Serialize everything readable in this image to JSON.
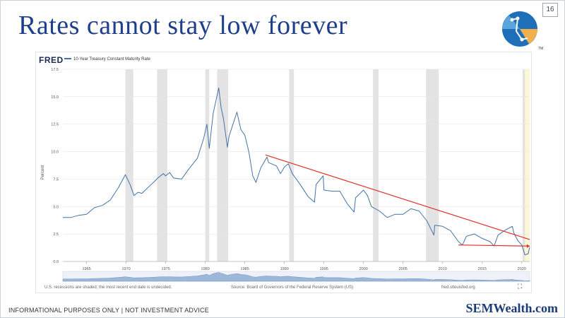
{
  "slide": {
    "title": "Rates cannot stay low forever",
    "page_number": "16",
    "disclaimer": "INFORMATIONAL PURPOSES ONLY | NOT INVESTMENT ADVICE",
    "brand": "SEMWealth.com",
    "logo_mark": "TM"
  },
  "chart_source": {
    "logo_text": "FRED",
    "recession_note": "U.S. recessions are shaded; the most recent end date is undecided.",
    "source_note": "Source: Board of Governors of the Federal Reserve System (US)",
    "site": "fred.stlouisfed.org"
  },
  "colors": {
    "title": "#1f3f8a",
    "series": "#4472a8",
    "trendline": "#e0302a",
    "recession": "#e3e3e3",
    "recent_highlight": "#fbf7d6"
  },
  "chart_data": {
    "type": "line",
    "title": "",
    "xlabel": "",
    "ylabel": "Percent",
    "xlim": [
      1962,
      2021
    ],
    "ylim": [
      0,
      17.5
    ],
    "grid": true,
    "x_ticks": [
      "1965",
      "1970",
      "1975",
      "1980",
      "1985",
      "1990",
      "1995",
      "2000",
      "2005",
      "2010",
      "2015",
      "2020"
    ],
    "y_ticks": [
      "0.0",
      "2.5",
      "5.0",
      "7.5",
      "10.0",
      "12.5",
      "15.0",
      "17.5"
    ],
    "legend": "top-left",
    "series": [
      {
        "name": "10-Year Treasury Constant Maturity Rate",
        "x": [
          1962,
          1963,
          1964,
          1965,
          1966,
          1967,
          1968,
          1969,
          1969.9,
          1970.5,
          1971,
          1971.5,
          1972,
          1973,
          1973.6,
          1974,
          1974.7,
          1975,
          1975.5,
          1976,
          1977,
          1978,
          1979,
          1979.8,
          1980.2,
          1980.5,
          1981,
          1981.7,
          1982,
          1982.3,
          1982.8,
          1983,
          1984,
          1984.5,
          1985,
          1985.5,
          1986,
          1986.4,
          1987,
          1987.8,
          1988,
          1989,
          1989.5,
          1990,
          1990.5,
          1991,
          1992,
          1993,
          1993.8,
          1994,
          1994.9,
          1995,
          1996,
          1997,
          1998,
          1998.8,
          1999,
          2000,
          2000.5,
          2001,
          2002,
          2003,
          2004,
          2005,
          2006,
          2007,
          2008,
          2008.9,
          2009,
          2010,
          2011,
          2012,
          2012.5,
          2013,
          2014,
          2015,
          2016,
          2016.5,
          2017,
          2018,
          2018.8,
          2019,
          2019.5,
          2020,
          2020.4,
          2020.8,
          2021
        ],
        "y": [
          4.0,
          4.0,
          4.2,
          4.3,
          4.9,
          5.1,
          5.6,
          6.7,
          7.9,
          7.0,
          6.0,
          6.3,
          6.2,
          6.9,
          7.3,
          7.6,
          8.0,
          7.8,
          8.1,
          7.6,
          7.5,
          8.5,
          9.4,
          11.2,
          12.5,
          10.3,
          13.5,
          15.8,
          14.0,
          13.0,
          10.4,
          11.4,
          13.6,
          12.0,
          11.5,
          10.0,
          7.8,
          7.2,
          8.5,
          9.5,
          9.0,
          8.7,
          8.0,
          8.6,
          8.9,
          8.0,
          7.0,
          5.9,
          5.4,
          7.0,
          7.8,
          6.5,
          6.4,
          6.4,
          5.2,
          4.5,
          5.8,
          6.5,
          6.0,
          5.0,
          4.6,
          4.0,
          4.3,
          4.3,
          4.8,
          4.6,
          3.7,
          2.4,
          3.3,
          3.2,
          2.8,
          1.8,
          1.5,
          2.3,
          2.5,
          2.1,
          1.8,
          1.4,
          2.4,
          2.9,
          3.2,
          2.6,
          1.9,
          1.5,
          0.6,
          0.7,
          1.3
        ]
      }
    ],
    "recessions": [
      [
        1969.9,
        1970.9
      ],
      [
        1973.9,
        1975.2
      ],
      [
        1980.0,
        1980.5
      ],
      [
        1981.5,
        1982.9
      ],
      [
        1990.6,
        1991.2
      ],
      [
        2001.2,
        2001.9
      ],
      [
        2007.9,
        2009.5
      ],
      [
        2020.1,
        2020.4
      ]
    ],
    "recent_highlight": [
      2020.1,
      2021
    ],
    "trendlines": [
      {
        "x1": 1987.6,
        "y1": 9.7,
        "x2": 2021,
        "y2": 2.0
      },
      {
        "x1": 2012.0,
        "y1": 1.5,
        "x2": 2021,
        "y2": 1.4
      }
    ]
  }
}
